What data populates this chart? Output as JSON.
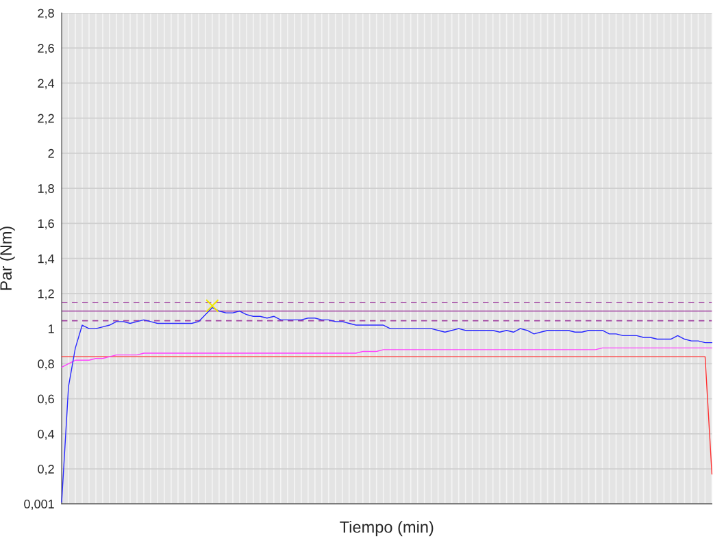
{
  "chart_data": {
    "type": "line",
    "xlabel": "Tiempo (min)",
    "ylabel": "Par (Nm)",
    "categories": [
      null,
      null,
      null,
      null,
      null,
      null,
      null,
      null,
      null,
      null,
      null,
      null,
      null,
      null,
      null,
      null,
      null,
      null,
      null,
      null,
      null,
      null,
      null,
      null,
      null,
      null,
      null,
      null,
      null,
      null,
      null,
      null,
      null,
      null,
      null,
      null,
      null,
      null,
      null,
      null,
      null,
      null,
      null,
      null,
      null,
      null,
      null,
      null,
      null,
      null,
      null,
      null,
      null,
      null,
      null,
      null,
      null,
      null,
      null,
      null,
      null,
      null,
      null,
      null,
      null,
      null,
      null,
      null,
      null,
      null,
      null,
      null,
      null,
      null,
      null,
      null,
      null,
      null,
      null,
      null,
      null,
      null,
      null,
      null,
      null,
      null,
      null,
      null,
      null,
      null,
      null,
      null,
      null,
      null,
      null,
      null
    ],
    "series": [
      {
        "color": "#ff3030",
        "values": [
          0.84,
          0.84,
          0.84,
          0.84,
          0.84,
          0.84,
          0.84,
          0.84,
          0.84,
          0.84,
          0.84,
          0.84,
          0.84,
          0.84,
          0.84,
          0.84,
          0.84,
          0.84,
          0.84,
          0.84,
          0.84,
          0.84,
          0.84,
          0.84,
          0.84,
          0.84,
          0.84,
          0.84,
          0.84,
          0.84,
          0.84,
          0.84,
          0.84,
          0.84,
          0.84,
          0.84,
          0.84,
          0.84,
          0.84,
          0.84,
          0.84,
          0.84,
          0.84,
          0.84,
          0.84,
          0.84,
          0.84,
          0.84,
          0.84,
          0.84,
          0.84,
          0.84,
          0.84,
          0.84,
          0.84,
          0.84,
          0.84,
          0.84,
          0.84,
          0.84,
          0.84,
          0.84,
          0.84,
          0.84,
          0.84,
          0.84,
          0.84,
          0.84,
          0.84,
          0.84,
          0.84,
          0.84,
          0.84,
          0.84,
          0.84,
          0.84,
          0.84,
          0.84,
          0.84,
          0.84,
          0.84,
          0.84,
          0.84,
          0.84,
          0.84,
          0.84,
          0.84,
          0.84,
          0.84,
          0.84,
          0.84,
          0.84,
          0.84,
          0.84,
          0.84,
          0.17
        ]
      },
      {
        "color": "#ff40ff",
        "values": [
          0.78,
          0.8,
          0.82,
          0.82,
          0.82,
          0.83,
          0.83,
          0.84,
          0.85,
          0.85,
          0.85,
          0.85,
          0.86,
          0.86,
          0.86,
          0.86,
          0.86,
          0.86,
          0.86,
          0.86,
          0.86,
          0.86,
          0.86,
          0.86,
          0.86,
          0.86,
          0.86,
          0.86,
          0.86,
          0.86,
          0.86,
          0.86,
          0.86,
          0.86,
          0.86,
          0.86,
          0.86,
          0.86,
          0.86,
          0.86,
          0.86,
          0.86,
          0.86,
          0.86,
          0.87,
          0.87,
          0.87,
          0.88,
          0.88,
          0.88,
          0.88,
          0.88,
          0.88,
          0.88,
          0.88,
          0.88,
          0.88,
          0.88,
          0.88,
          0.88,
          0.88,
          0.88,
          0.88,
          0.88,
          0.88,
          0.88,
          0.88,
          0.88,
          0.88,
          0.88,
          0.88,
          0.88,
          0.88,
          0.88,
          0.88,
          0.88,
          0.88,
          0.88,
          0.88,
          0.89,
          0.89,
          0.89,
          0.89,
          0.89,
          0.89,
          0.89,
          0.89,
          0.89,
          0.89,
          0.89,
          0.89,
          0.89,
          0.89,
          0.89,
          0.89,
          0.89
        ]
      },
      {
        "color": "#2828ff",
        "values": [
          0.01,
          0.67,
          0.89,
          1.02,
          1.0,
          1.0,
          1.01,
          1.02,
          1.04,
          1.04,
          1.03,
          1.04,
          1.05,
          1.04,
          1.03,
          1.03,
          1.03,
          1.03,
          1.03,
          1.03,
          1.04,
          1.08,
          1.12,
          1.1,
          1.09,
          1.09,
          1.1,
          1.08,
          1.07,
          1.07,
          1.06,
          1.07,
          1.05,
          1.05,
          1.05,
          1.05,
          1.06,
          1.06,
          1.05,
          1.05,
          1.04,
          1.04,
          1.03,
          1.02,
          1.02,
          1.02,
          1.02,
          1.02,
          1.0,
          1.0,
          1.0,
          1.0,
          1.0,
          1.0,
          1.0,
          0.99,
          0.98,
          0.99,
          1.0,
          0.99,
          0.99,
          0.99,
          0.99,
          0.99,
          0.98,
          0.99,
          0.98,
          1.0,
          0.99,
          0.97,
          0.98,
          0.99,
          0.99,
          0.99,
          0.99,
          0.98,
          0.98,
          0.99,
          0.99,
          0.99,
          0.97,
          0.97,
          0.96,
          0.96,
          0.96,
          0.95,
          0.95,
          0.94,
          0.94,
          0.94,
          0.96,
          0.94,
          0.93,
          0.93,
          0.92,
          0.92
        ]
      },
      {
        "type": "scatter",
        "marker": "cross",
        "color": "#f0e800",
        "values": [
          null,
          null,
          null,
          null,
          null,
          null,
          null,
          null,
          null,
          null,
          null,
          null,
          null,
          null,
          null,
          null,
          null,
          null,
          null,
          null,
          null,
          null,
          1.13,
          null,
          null,
          null,
          null,
          null,
          null,
          null,
          null,
          null,
          null,
          null,
          null,
          null,
          null,
          null,
          null,
          null,
          null,
          null,
          null,
          null,
          null,
          null,
          null,
          null,
          null,
          null,
          null,
          null,
          null,
          null,
          null,
          null,
          null,
          null,
          null,
          null,
          null,
          null,
          null,
          null,
          null,
          null,
          null,
          null,
          null,
          null,
          null,
          null,
          null,
          null,
          null,
          null,
          null,
          null,
          null,
          null,
          null,
          null,
          null,
          null,
          null,
          null,
          null,
          null,
          null,
          null,
          null,
          null,
          null,
          null,
          null,
          null
        ]
      }
    ],
    "ref_lines": [
      {
        "axis": "y",
        "value": 1.15,
        "color": "#a040a0",
        "line_style": "dashed"
      },
      {
        "axis": "y",
        "value": 1.1,
        "color": "#a040a0",
        "line_style": "solid"
      },
      {
        "axis": "y",
        "value": 1.045,
        "color": "#a040a0",
        "line_style": "dashed"
      }
    ],
    "ylim": [
      0.001,
      2.8
    ],
    "yticks": [
      {
        "value": 0.001,
        "label": "0,001"
      },
      {
        "value": 0.2,
        "label": "0,2"
      },
      {
        "value": 0.4,
        "label": "0,4"
      },
      {
        "value": 0.6,
        "label": "0,6"
      },
      {
        "value": 0.8,
        "label": "0,8"
      },
      {
        "value": 1,
        "label": "1"
      },
      {
        "value": 1.2,
        "label": "1,2"
      },
      {
        "value": 1.4,
        "label": "1,4"
      },
      {
        "value": 1.6,
        "label": "1,6"
      },
      {
        "value": 1.8,
        "label": "1,8"
      },
      {
        "value": 2,
        "label": "2"
      },
      {
        "value": 2.2,
        "label": "2,2"
      },
      {
        "value": 2.4,
        "label": "2,4"
      },
      {
        "value": 2.6,
        "label": "2,6"
      },
      {
        "value": 2.8,
        "label": "2,8"
      }
    ],
    "grid": true,
    "tick_labels": "y",
    "legend": false
  }
}
